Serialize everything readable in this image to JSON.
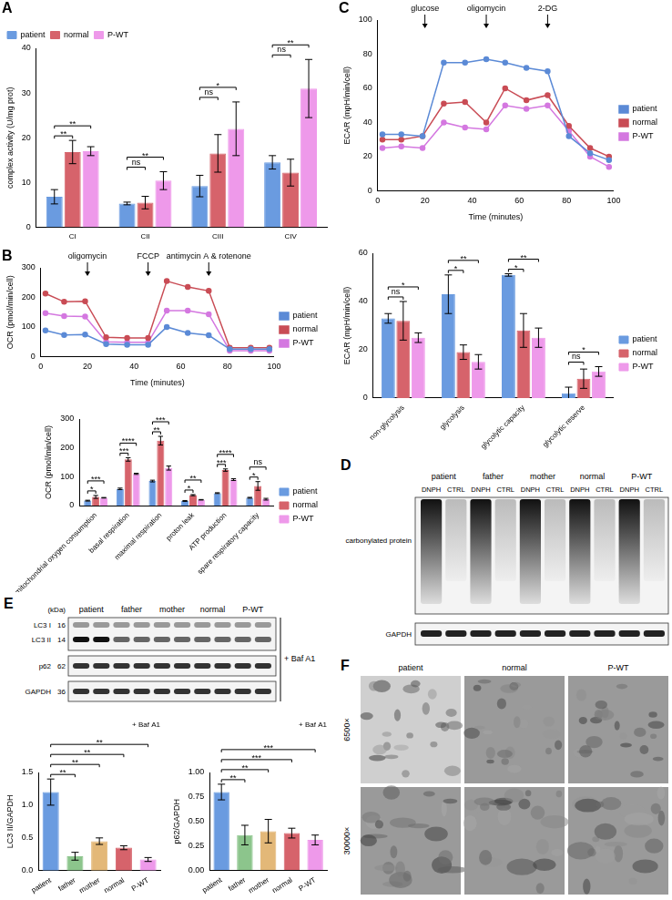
{
  "chart_data": [
    {
      "panel": "A",
      "type": "bar",
      "categories": [
        "CI",
        "CII",
        "CIII",
        "CIV"
      ],
      "y_label": "complex activity (U/mg prot)",
      "ylim": [
        0,
        40
      ],
      "yticks": [
        0,
        10,
        20,
        30,
        40
      ],
      "grid": false,
      "legend": "upper left",
      "series": [
        {
          "name": "patient",
          "color": "#6a9be0",
          "values": [
            6.8,
            5.3,
            9.2,
            14.5
          ],
          "errors": [
            1.6,
            0.3,
            2.4,
            1.5
          ]
        },
        {
          "name": "normal",
          "color": "#d6636b",
          "values": [
            16.8,
            5.5,
            16.5,
            12.2
          ],
          "errors": [
            2.6,
            1.4,
            4.2,
            3.0
          ]
        },
        {
          "name": "P-WT",
          "color": "#ee99ea",
          "values": [
            17.0,
            10.4,
            22.0,
            31.0
          ],
          "errors": [
            1.0,
            2.0,
            6.0,
            6.5
          ]
        }
      ],
      "significance": [
        {
          "category": "CI",
          "from": "patient",
          "to": "normal",
          "text": "**"
        },
        {
          "category": "CI",
          "from": "patient",
          "to": "P-WT",
          "text": "**"
        },
        {
          "category": "CII",
          "from": "patient",
          "to": "normal",
          "text": "ns"
        },
        {
          "category": "CII",
          "from": "patient",
          "to": "P-WT",
          "text": "**"
        },
        {
          "category": "CIII",
          "from": "patient",
          "to": "normal",
          "text": "ns"
        },
        {
          "category": "CIII",
          "from": "patient",
          "to": "P-WT",
          "text": "*"
        },
        {
          "category": "CIV",
          "from": "patient",
          "to": "normal",
          "text": "ns"
        },
        {
          "category": "CIV",
          "from": "patient",
          "to": "P-WT",
          "text": "**"
        }
      ]
    },
    {
      "panel": "B",
      "type": "line",
      "x": [
        2,
        10,
        19,
        28,
        37,
        46,
        54,
        63,
        72,
        81,
        90,
        98
      ],
      "x_label": "Time (minutes)",
      "y_label": "OCR (pmol/min/cell)",
      "xlim": [
        0,
        100
      ],
      "xticks": [
        0,
        20,
        40,
        60,
        80,
        100
      ],
      "ylim": [
        0,
        300
      ],
      "yticks": [
        0,
        100,
        200,
        300
      ],
      "grid": false,
      "legend": "right",
      "series": [
        {
          "name": "patient",
          "color": "#5b8ad6",
          "marker": "circle",
          "values": [
            88,
            73,
            74,
            42,
            40,
            40,
            100,
            80,
            72,
            25,
            25,
            25
          ]
        },
        {
          "name": "normal",
          "color": "#c94c55",
          "marker": "circle",
          "values": [
            213,
            185,
            187,
            65,
            63,
            63,
            255,
            235,
            222,
            30,
            30,
            30
          ]
        },
        {
          "name": "P-WT",
          "color": "#d478e0",
          "marker": "circle",
          "values": [
            147,
            137,
            135,
            50,
            48,
            48,
            155,
            155,
            143,
            20,
            20,
            20
          ]
        }
      ],
      "annotations": [
        {
          "x": 20,
          "text": "oligomycin"
        },
        {
          "x": 46,
          "text": "FCCP"
        },
        {
          "x": 72,
          "text": "antimycin A & rotenone"
        }
      ]
    },
    {
      "type": "bar",
      "categories": [
        "non-mitochondrial oxygen consumption",
        "basal respiration",
        "maximal respiration",
        "proton leak",
        "ATP production",
        "spare respiratory capacity"
      ],
      "y_label": "OCR (pmol/min/cell)",
      "ylim": [
        0,
        300
      ],
      "yticks": [
        0,
        100,
        200,
        300
      ],
      "grid": false,
      "legend": "right",
      "series": [
        {
          "name": "patient",
          "color": "#6a9be0",
          "values": [
            17,
            58,
            85,
            16,
            43,
            27
          ],
          "errors": [
            1.5,
            2.5,
            3,
            1.5,
            1.5,
            1.5
          ]
        },
        {
          "name": "normal",
          "color": "#d6636b",
          "values": [
            30,
            160,
            225,
            36,
            123,
            68
          ],
          "errors": [
            5,
            6,
            15,
            2,
            4,
            15
          ]
        },
        {
          "name": "P-WT",
          "color": "#ee99ea",
          "values": [
            27,
            110,
            130,
            20,
            90,
            22
          ],
          "errors": [
            1,
            2,
            7,
            1,
            3,
            3
          ]
        }
      ],
      "significance": [
        {
          "category": "non-mitochondrial oxygen consumption",
          "from": "patient",
          "to": "normal",
          "text": "*"
        },
        {
          "category": "non-mitochondrial oxygen consumption",
          "from": "patient",
          "to": "P-WT",
          "text": "***"
        },
        {
          "category": "basal respiration",
          "from": "patient",
          "to": "normal",
          "text": "***"
        },
        {
          "category": "basal respiration",
          "from": "patient",
          "to": "P-WT",
          "text": "****"
        },
        {
          "category": "maximal respiration",
          "from": "patient",
          "to": "normal",
          "text": "**"
        },
        {
          "category": "maximal respiration",
          "from": "patient",
          "to": "P-WT",
          "text": "***"
        },
        {
          "category": "proton leak",
          "from": "patient",
          "to": "normal",
          "text": "*"
        },
        {
          "category": "proton leak",
          "from": "patient",
          "to": "P-WT",
          "text": "**"
        },
        {
          "category": "ATP production",
          "from": "patient",
          "to": "normal",
          "text": "***"
        },
        {
          "category": "ATP production",
          "from": "patient",
          "to": "P-WT",
          "text": "****"
        },
        {
          "category": "spare respiratory capacity",
          "from": "patient",
          "to": "normal",
          "text": "*"
        },
        {
          "category": "spare respiratory capacity",
          "from": "patient",
          "to": "P-WT",
          "text": "ns"
        }
      ]
    },
    {
      "panel": "C",
      "type": "line",
      "x": [
        2,
        10,
        19,
        28,
        37,
        46,
        54,
        63,
        72,
        81,
        90,
        98
      ],
      "x_label": "Time (minutes)",
      "y_label": "ECAR (mpH/min/cell)",
      "xlim": [
        0,
        100
      ],
      "xticks": [
        0,
        20,
        40,
        60,
        80,
        100
      ],
      "ylim": [
        0,
        100
      ],
      "yticks": [
        0,
        20,
        40,
        60,
        80,
        100
      ],
      "grid": false,
      "legend": "right",
      "series": [
        {
          "name": "patient",
          "color": "#5b8ad6",
          "marker": "circle",
          "values": [
            33,
            33,
            32,
            75,
            75,
            77,
            75,
            72,
            70,
            32,
            22,
            18
          ]
        },
        {
          "name": "normal",
          "color": "#c94c55",
          "marker": "circle",
          "values": [
            30,
            30,
            32,
            51,
            52,
            40,
            60,
            53,
            56,
            38,
            25,
            20
          ]
        },
        {
          "name": "P-WT",
          "color": "#d478e0",
          "marker": "circle",
          "values": [
            25,
            26,
            25,
            40,
            37,
            36,
            50,
            48,
            50,
            35,
            20,
            14
          ]
        }
      ],
      "annotations": [
        {
          "x": 20,
          "text": "glucose"
        },
        {
          "x": 46,
          "text": "oligomycin"
        },
        {
          "x": 72,
          "text": "2-DG"
        }
      ]
    },
    {
      "type": "bar",
      "categories": [
        "non-glycolysis",
        "glycolysis",
        "glycolytic capacity",
        "glycolytic reserve"
      ],
      "y_label": "ECAR (mpH/min/cell)",
      "ylim": [
        0,
        60
      ],
      "yticks": [
        0,
        20,
        40,
        60
      ],
      "grid": false,
      "legend": "right",
      "series": [
        {
          "name": "patient",
          "color": "#6a9be0",
          "values": [
            33,
            43,
            51,
            2
          ],
          "errors": [
            2,
            8,
            0.5,
            2.5
          ]
        },
        {
          "name": "normal",
          "color": "#d6636b",
          "values": [
            32,
            19,
            28,
            8
          ],
          "errors": [
            8,
            3,
            7,
            4
          ]
        },
        {
          "name": "P-WT",
          "color": "#ee99ea",
          "values": [
            25,
            15,
            25,
            11
          ],
          "errors": [
            2,
            3,
            4,
            2
          ]
        }
      ],
      "significance": [
        {
          "category": "non-glycolysis",
          "from": "patient",
          "to": "normal",
          "text": "ns"
        },
        {
          "category": "non-glycolysis",
          "from": "patient",
          "to": "P-WT",
          "text": "*"
        },
        {
          "category": "glycolysis",
          "from": "patient",
          "to": "normal",
          "text": "*"
        },
        {
          "category": "glycolysis",
          "from": "patient",
          "to": "P-WT",
          "text": "**"
        },
        {
          "category": "glycolytic capacity",
          "from": "patient",
          "to": "normal",
          "text": "*"
        },
        {
          "category": "glycolytic capacity",
          "from": "patient",
          "to": "P-WT",
          "text": "**"
        },
        {
          "category": "glycolytic reserve",
          "from": "patient",
          "to": "normal",
          "text": "ns"
        },
        {
          "category": "glycolytic reserve",
          "from": "patient",
          "to": "P-WT",
          "text": "*"
        }
      ]
    },
    {
      "type": "bar",
      "categories": [
        "patient",
        "father",
        "mother",
        "normal",
        "P-WT"
      ],
      "y_label": "LC3 II/GAPDH",
      "annotation": "+ Baf A1",
      "ylim": [
        0,
        1.5
      ],
      "yticks": [
        {
          "value": 0,
          "label": "0.0"
        },
        {
          "value": 0.5,
          "label": "0.5"
        },
        {
          "value": 1,
          "label": "1.0"
        },
        {
          "value": 1.5,
          "label": "1.5"
        }
      ],
      "grid": false,
      "values": [
        1.2,
        0.22,
        0.45,
        0.35,
        0.17
      ],
      "errors": [
        0.2,
        0.06,
        0.05,
        0.03,
        0.03
      ],
      "colors": [
        "#6a9be0",
        "#8cc58c",
        "#e3b878",
        "#d6636b",
        "#ee99ea"
      ],
      "significance": [
        {
          "from": "patient",
          "to": "father",
          "text": "**"
        },
        {
          "from": "patient",
          "to": "mother",
          "text": "**"
        },
        {
          "from": "patient",
          "to": "normal",
          "text": "**"
        },
        {
          "from": "patient",
          "to": "P-WT",
          "text": "**"
        }
      ]
    },
    {
      "type": "bar",
      "categories": [
        "patient",
        "father",
        "mother",
        "normal",
        "P-WT"
      ],
      "y_label": "p62/GAPDH",
      "annotation": "+ Baf A1",
      "ylim": [
        0,
        1
      ],
      "yticks": [
        {
          "value": 0,
          "label": "0.00"
        },
        {
          "value": 0.25,
          "label": "0.25"
        },
        {
          "value": 0.5,
          "label": "0.50"
        },
        {
          "value": 0.75,
          "label": "0.75"
        },
        {
          "value": 1,
          "label": "1.00"
        }
      ],
      "grid": false,
      "values": [
        0.8,
        0.36,
        0.4,
        0.38,
        0.31
      ],
      "errors": [
        0.08,
        0.1,
        0.12,
        0.05,
        0.05
      ],
      "colors": [
        "#6a9be0",
        "#8cc58c",
        "#e3b878",
        "#d6636b",
        "#ee99ea"
      ],
      "significance": [
        {
          "from": "patient",
          "to": "father",
          "text": "**"
        },
        {
          "from": "patient",
          "to": "mother",
          "text": "**"
        },
        {
          "from": "patient",
          "to": "normal",
          "text": "***"
        },
        {
          "from": "patient",
          "to": "P-WT",
          "text": "***"
        }
      ]
    }
  ],
  "blot_D": {
    "panel": "D",
    "groups": [
      "patient",
      "father",
      "mother",
      "normal",
      "P-WT"
    ],
    "lanes": [
      "DNPH",
      "CTRL"
    ],
    "rows": [
      "carbonylated protein",
      "GAPDH"
    ]
  },
  "blot_E": {
    "panel": "E",
    "groups": [
      "patient",
      "father",
      "mother",
      "normal",
      "P-WT"
    ],
    "unit": "(kDa)",
    "rows": [
      {
        "label": "LC3 I",
        "kda": 16
      },
      {
        "label": "LC3 II",
        "kda": 14
      },
      {
        "label": "p62",
        "kda": 62
      },
      {
        "label": "GAPDH",
        "kda": 36
      }
    ],
    "treatment": "+ Baf A1"
  },
  "images_F": {
    "panel": "F",
    "columns": [
      "patient",
      "normal",
      "P-WT"
    ],
    "rows": [
      "6500×",
      "30000×"
    ]
  }
}
